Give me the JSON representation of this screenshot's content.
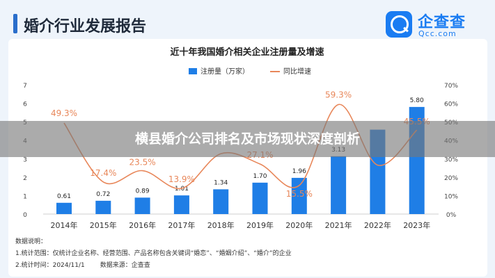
{
  "header": {
    "title": "婚介行业发展报告"
  },
  "logo": {
    "name": "企查查",
    "subtitle": "Qcc.com"
  },
  "banner": {
    "text": "横县婚介公司排名及市场现状深度剖析"
  },
  "notes": {
    "heading": "数据说明：",
    "line1": "1.统计范围：仅统计企业名称、经营范围、产品名称包含关键词“婚恋”、“婚姻介绍”、“婚介”的企业",
    "line2_label": "2.统计时间：",
    "line2_value": "2024/11/1",
    "line2_source": "数据来源：企查查"
  },
  "colors": {
    "bar": "#1f7ee6",
    "line": "#e8875a",
    "title": "#222222",
    "tick": "#444444"
  },
  "chart_data": {
    "type": "bar",
    "title": "近十年我国婚介相关企业注册量及增速",
    "categories": [
      "2014年",
      "2015年",
      "2016年",
      "2017年",
      "2018年",
      "2019年",
      "2020年",
      "2021年",
      "2022年",
      "2023年"
    ],
    "series": [
      {
        "name": "注册量（万家）",
        "type": "bar",
        "axis": "left",
        "values": [
          0.61,
          0.72,
          0.89,
          1.01,
          1.34,
          1.7,
          1.96,
          3.13,
          4.57,
          5.8
        ],
        "labels": [
          "0.61",
          "0.72",
          "0.89",
          "1.01",
          "1.34",
          "1.70",
          "1.96",
          "3.13",
          "",
          "5.80"
        ]
      },
      {
        "name": "同比增速",
        "type": "line",
        "axis": "right",
        "values": [
          49.3,
          17.4,
          23.5,
          13.9,
          32.7,
          27.1,
          15.5,
          59.3,
          26.5,
          45.5
        ],
        "labels": [
          "49.3%",
          "17.4%",
          "23.5%",
          "13.9%",
          "",
          "27.1%",
          "15.5%",
          "59.3%",
          "",
          "45.5%"
        ]
      }
    ],
    "y_left": {
      "min": 0,
      "max": 7,
      "ticks": [
        "0",
        "1",
        "2",
        "3",
        "4",
        "5",
        "6",
        "7"
      ]
    },
    "y_right": {
      "min": 0,
      "max": 70,
      "ticks": [
        "0%",
        "10%",
        "20%",
        "30%",
        "40%",
        "50%",
        "60%",
        "70%"
      ]
    },
    "legend_position": "top-center",
    "grid": false
  }
}
